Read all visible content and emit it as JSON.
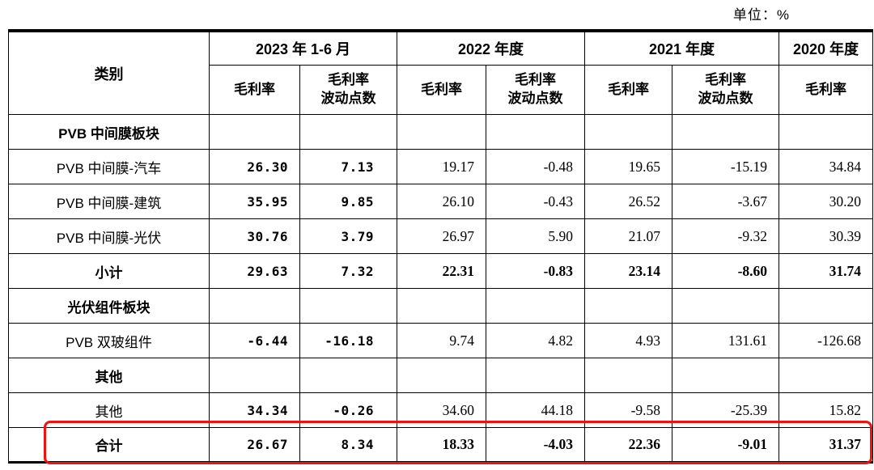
{
  "unit_label": "单位：%",
  "colors": {
    "highlight_border": "#f21111",
    "table_border": "#000000"
  },
  "table": {
    "header": {
      "category": "类别",
      "periods": [
        {
          "label": "2023 年 1-6 月",
          "sub": [
            "毛利率",
            "毛利率\n波动点数"
          ]
        },
        {
          "label": "2022 年度",
          "sub": [
            "毛利率",
            "毛利率\n波动点数"
          ]
        },
        {
          "label": "2021 年度",
          "sub": [
            "毛利率",
            "毛利率\n波动点数"
          ]
        },
        {
          "label": "2020 年度",
          "sub": [
            "毛利率"
          ]
        }
      ]
    },
    "rows": [
      {
        "label": "PVB 中间膜板块",
        "style": "section",
        "values": [
          "",
          "",
          "",
          "",
          "",
          "",
          ""
        ]
      },
      {
        "label": "PVB 中间膜-汽车",
        "style": "data",
        "values": [
          "26.30",
          "7.13",
          "19.17",
          "-0.48",
          "19.65",
          "-15.19",
          "34.84"
        ]
      },
      {
        "label": "PVB 中间膜-建筑",
        "style": "data",
        "values": [
          "35.95",
          "9.85",
          "26.10",
          "-0.43",
          "26.52",
          "-3.67",
          "30.20"
        ]
      },
      {
        "label": "PVB 中间膜-光伏",
        "style": "data",
        "values": [
          "30.76",
          "3.79",
          "26.97",
          "5.90",
          "21.07",
          "-9.32",
          "30.39"
        ]
      },
      {
        "label": "小计",
        "style": "subtotal",
        "values": [
          "29.63",
          "7.32",
          "22.31",
          "-0.83",
          "23.14",
          "-8.60",
          "31.74"
        ]
      },
      {
        "label": "光伏组件板块",
        "style": "section",
        "values": [
          "",
          "",
          "",
          "",
          "",
          "",
          ""
        ]
      },
      {
        "label": "PVB 双玻组件",
        "style": "data",
        "values": [
          "-6.44",
          "-16.18",
          "9.74",
          "4.82",
          "4.93",
          "131.61",
          "-126.68"
        ]
      },
      {
        "label": "其他",
        "style": "section",
        "values": [
          "",
          "",
          "",
          "",
          "",
          "",
          ""
        ]
      },
      {
        "label": "其他",
        "style": "data",
        "values": [
          "34.34",
          "-0.26",
          "34.60",
          "44.18",
          "-9.58",
          "-25.39",
          "15.82"
        ]
      },
      {
        "label": "合计",
        "style": "total",
        "values": [
          "26.67",
          "8.34",
          "18.33",
          "-4.03",
          "22.36",
          "-9.01",
          "31.37"
        ]
      }
    ]
  }
}
